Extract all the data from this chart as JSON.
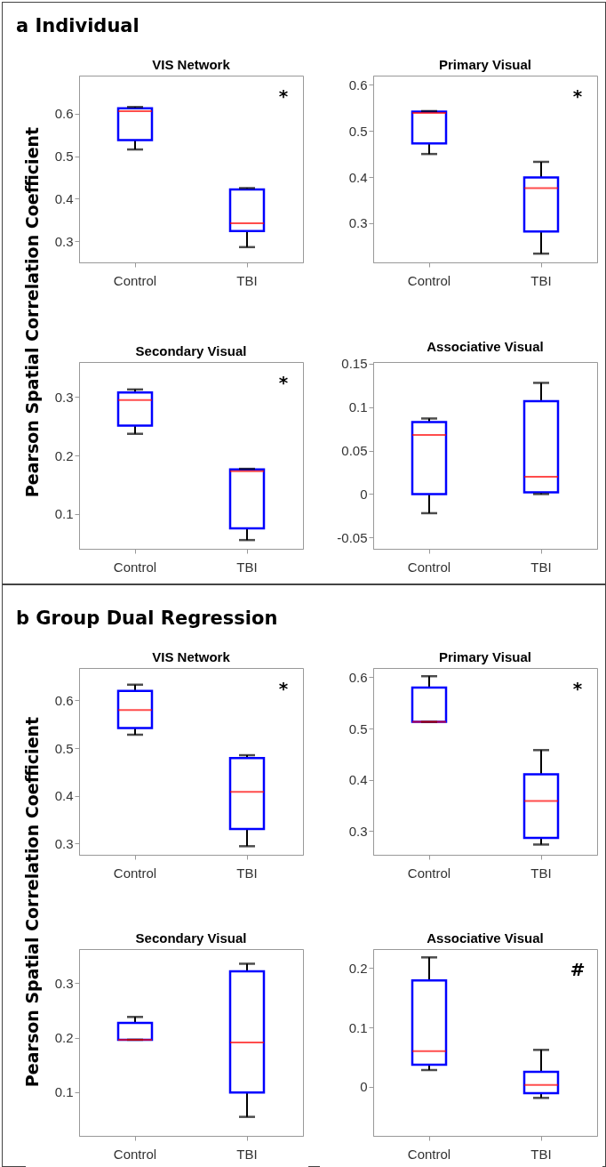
{
  "chart_data": [
    {
      "type": "box",
      "title": "VIS Network",
      "ylabel": "Pearson Spatial Correlation Coefficient",
      "categories": [
        "Control",
        "TBI"
      ],
      "color": "#0000ff",
      "ylim": [
        0.25,
        0.69
      ],
      "yticks": [
        0.3,
        0.4,
        0.5,
        0.6
      ],
      "annotations": [
        "a Individual",
        "*"
      ],
      "boxes": [
        {
          "low": 0.516,
          "q1": 0.538,
          "median": 0.606,
          "q3": 0.613,
          "high": 0.616
        },
        {
          "low": 0.286,
          "q1": 0.324,
          "median": 0.342,
          "q3": 0.422,
          "high": 0.425
        }
      ]
    },
    {
      "type": "box",
      "title": "Primary Visual",
      "categories": [
        "Control",
        "TBI"
      ],
      "color": "#0000ff",
      "ylim": [
        0.215,
        0.62
      ],
      "yticks": [
        0.3,
        0.4,
        0.5,
        0.6
      ],
      "annotations": [
        "*"
      ],
      "boxes": [
        {
          "low": 0.45,
          "q1": 0.473,
          "median": 0.539,
          "q3": 0.542,
          "high": 0.543
        },
        {
          "low": 0.234,
          "q1": 0.282,
          "median": 0.376,
          "q3": 0.399,
          "high": 0.433
        }
      ]
    },
    {
      "type": "box",
      "title": "Secondary Visual",
      "categories": [
        "Control",
        "TBI"
      ],
      "color": "#0000ff",
      "ylim": [
        0.04,
        0.36
      ],
      "yticks": [
        0.1,
        0.2,
        0.3
      ],
      "annotations": [
        "*"
      ],
      "boxes": [
        {
          "low": 0.237,
          "q1": 0.251,
          "median": 0.295,
          "q3": 0.308,
          "high": 0.313
        },
        {
          "low": 0.055,
          "q1": 0.075,
          "median": 0.173,
          "q3": 0.176,
          "high": 0.177
        }
      ]
    },
    {
      "type": "box",
      "title": "Associative Visual",
      "categories": [
        "Control",
        "TBI"
      ],
      "color": "#0000ff",
      "ylim": [
        -0.063,
        0.152
      ],
      "yticks": [
        -0.05,
        0,
        0.05,
        0.1,
        0.15
      ],
      "boxes": [
        {
          "low": -0.022,
          "q1": 0.0,
          "median": 0.068,
          "q3": 0.083,
          "high": 0.087
        },
        {
          "low": 0.0,
          "q1": 0.002,
          "median": 0.02,
          "q3": 0.107,
          "high": 0.128
        }
      ]
    },
    {
      "type": "box",
      "title": "VIS Network",
      "ylabel": "Pearson Spatial Correlation Coefficient",
      "categories": [
        "Control",
        "TBI"
      ],
      "color": "#0000ff",
      "ylim": [
        0.276,
        0.668
      ],
      "yticks": [
        0.3,
        0.4,
        0.5,
        0.6
      ],
      "annotations": [
        "b Group Dual Regression",
        "*"
      ],
      "boxes": [
        {
          "low": 0.528,
          "q1": 0.542,
          "median": 0.58,
          "q3": 0.62,
          "high": 0.633
        },
        {
          "low": 0.294,
          "q1": 0.33,
          "median": 0.408,
          "q3": 0.479,
          "high": 0.485
        }
      ]
    },
    {
      "type": "box",
      "title": "Primary Visual",
      "categories": [
        "Control",
        "TBI"
      ],
      "color": "#0000ff",
      "ylim": [
        0.254,
        0.618
      ],
      "yticks": [
        0.3,
        0.4,
        0.5,
        0.6
      ],
      "annotations": [
        "*"
      ],
      "boxes": [
        {
          "low": 0.513,
          "q1": 0.513,
          "median": 0.513,
          "q3": 0.58,
          "high": 0.602
        },
        {
          "low": 0.274,
          "q1": 0.287,
          "median": 0.359,
          "q3": 0.411,
          "high": 0.458
        }
      ]
    },
    {
      "type": "box",
      "title": "Secondary Visual",
      "categories": [
        "Control",
        "TBI"
      ],
      "color": "#0000ff",
      "ylim": [
        0.019,
        0.363
      ],
      "yticks": [
        0.1,
        0.2,
        0.3
      ],
      "boxes": [
        {
          "low": 0.196,
          "q1": 0.196,
          "median": 0.196,
          "q3": 0.227,
          "high": 0.238
        },
        {
          "low": 0.054,
          "q1": 0.099,
          "median": 0.191,
          "q3": 0.322,
          "high": 0.336
        }
      ]
    },
    {
      "type": "box",
      "title": "Associative Visual",
      "categories": [
        "Control",
        "TBI"
      ],
      "color": "#0000ff",
      "ylim": [
        -0.083,
        0.232
      ],
      "yticks": [
        0,
        0.1,
        0.2
      ],
      "annotations": [
        "#"
      ],
      "boxes": [
        {
          "low": 0.028,
          "q1": 0.037,
          "median": 0.06,
          "q3": 0.179,
          "high": 0.218
        },
        {
          "low": -0.019,
          "q1": -0.011,
          "median": 0.003,
          "q3": 0.025,
          "high": 0.062
        }
      ]
    }
  ]
}
